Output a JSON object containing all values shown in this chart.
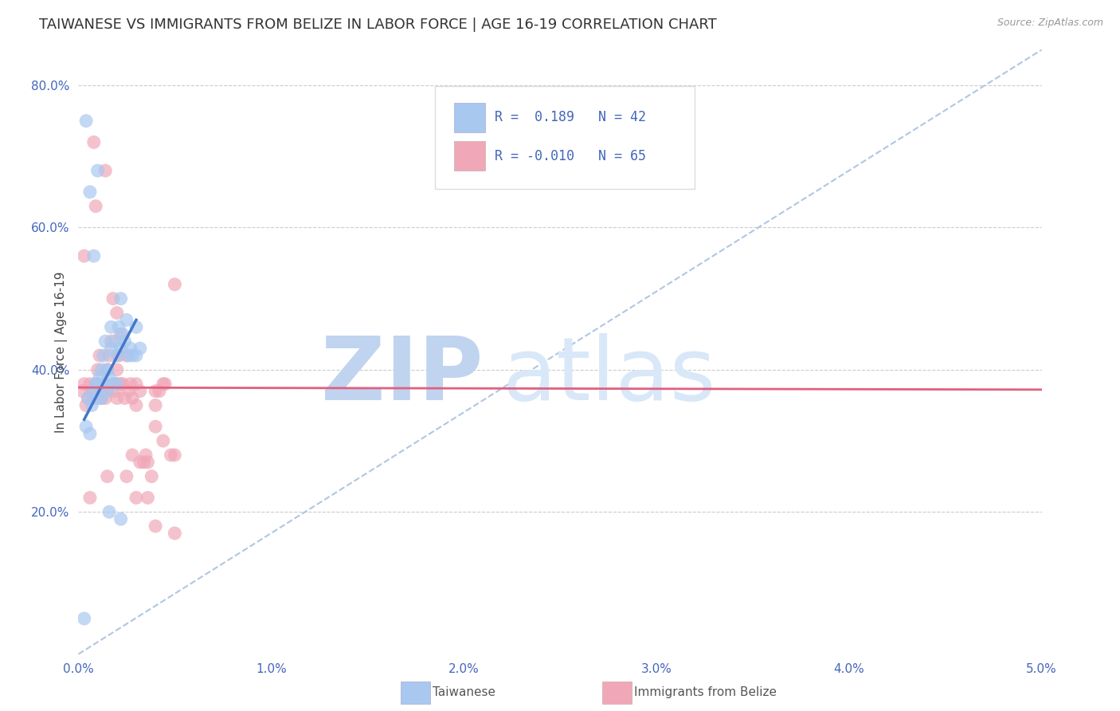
{
  "title": "TAIWANESE VS IMMIGRANTS FROM BELIZE IN LABOR FORCE | AGE 16-19 CORRELATION CHART",
  "source": "Source: ZipAtlas.com",
  "ylabel": "In Labor Force | Age 16-19",
  "xlim": [
    0.0,
    0.05
  ],
  "ylim": [
    0.0,
    0.85
  ],
  "xticks": [
    0.0,
    0.01,
    0.02,
    0.03,
    0.04,
    0.05
  ],
  "xticklabels": [
    "0.0%",
    "1.0%",
    "2.0%",
    "3.0%",
    "4.0%",
    "5.0%"
  ],
  "yticks": [
    0.0,
    0.2,
    0.4,
    0.6,
    0.8
  ],
  "yticklabels": [
    "",
    "20.0%",
    "40.0%",
    "60.0%",
    "80.0%"
  ],
  "background_color": "#ffffff",
  "grid_color": "#cccccc",
  "blue_color": "#a8c8f0",
  "pink_color": "#f0a8b8",
  "blue_line_color": "#4477cc",
  "pink_line_color": "#e06080",
  "dashed_line_color": "#a8c0e0",
  "watermark_zip_color": "#c0d4f0",
  "watermark_atlas_color": "#d8e8f8",
  "legend_R_blue": "0.189",
  "legend_N_blue": "42",
  "legend_R_pink": "-0.010",
  "legend_N_pink": "65",
  "legend_label_blue": "Taiwanese",
  "legend_label_pink": "Immigrants from Belize",
  "title_fontsize": 13,
  "axis_label_fontsize": 11,
  "tick_fontsize": 11,
  "tick_color": "#4466bb",
  "title_color": "#333333",
  "source_color": "#999999",
  "ylabel_color": "#444444",
  "taiwanese_x": [
    0.0003,
    0.0004,
    0.0005,
    0.0006,
    0.0007,
    0.0008,
    0.0009,
    0.001,
    0.001,
    0.0011,
    0.0012,
    0.0012,
    0.0013,
    0.0013,
    0.0014,
    0.0015,
    0.0015,
    0.0016,
    0.0017,
    0.0017,
    0.0018,
    0.0019,
    0.002,
    0.002,
    0.0021,
    0.0022,
    0.0022,
    0.0023,
    0.0024,
    0.0025,
    0.0026,
    0.0027,
    0.0028,
    0.003,
    0.003,
    0.0032,
    0.0004,
    0.0006,
    0.0008,
    0.001,
    0.0016,
    0.0022
  ],
  "taiwanese_y": [
    0.05,
    0.32,
    0.36,
    0.31,
    0.35,
    0.37,
    0.38,
    0.36,
    0.38,
    0.39,
    0.4,
    0.36,
    0.42,
    0.38,
    0.44,
    0.37,
    0.4,
    0.39,
    0.43,
    0.46,
    0.38,
    0.44,
    0.38,
    0.42,
    0.46,
    0.43,
    0.5,
    0.45,
    0.44,
    0.47,
    0.42,
    0.43,
    0.42,
    0.42,
    0.46,
    0.43,
    0.75,
    0.65,
    0.56,
    0.68,
    0.2,
    0.19
  ],
  "belize_x": [
    0.0002,
    0.0003,
    0.0004,
    0.0005,
    0.0006,
    0.0007,
    0.0008,
    0.0009,
    0.001,
    0.001,
    0.0011,
    0.0012,
    0.0013,
    0.0014,
    0.0015,
    0.0015,
    0.0016,
    0.0017,
    0.0018,
    0.0019,
    0.002,
    0.002,
    0.002,
    0.0021,
    0.0022,
    0.0023,
    0.0024,
    0.0025,
    0.0026,
    0.0027,
    0.0028,
    0.003,
    0.003,
    0.0032,
    0.0034,
    0.0035,
    0.0036,
    0.0038,
    0.004,
    0.004,
    0.0042,
    0.0044,
    0.0045,
    0.005,
    0.005,
    0.0003,
    0.0006,
    0.0009,
    0.0012,
    0.0015,
    0.0018,
    0.0022,
    0.0025,
    0.0028,
    0.0032,
    0.0036,
    0.004,
    0.0044,
    0.005,
    0.0048,
    0.0008,
    0.0014,
    0.002,
    0.003,
    0.004
  ],
  "belize_y": [
    0.37,
    0.38,
    0.35,
    0.36,
    0.38,
    0.37,
    0.36,
    0.38,
    0.4,
    0.38,
    0.42,
    0.37,
    0.38,
    0.36,
    0.4,
    0.37,
    0.42,
    0.44,
    0.38,
    0.37,
    0.38,
    0.4,
    0.36,
    0.42,
    0.38,
    0.38,
    0.36,
    0.42,
    0.37,
    0.38,
    0.36,
    0.38,
    0.35,
    0.37,
    0.27,
    0.28,
    0.27,
    0.25,
    0.37,
    0.35,
    0.37,
    0.38,
    0.38,
    0.52,
    0.28,
    0.56,
    0.22,
    0.63,
    0.36,
    0.25,
    0.5,
    0.45,
    0.25,
    0.28,
    0.27,
    0.22,
    0.32,
    0.3,
    0.17,
    0.28,
    0.72,
    0.68,
    0.48,
    0.22,
    0.18
  ],
  "blue_trend_x": [
    0.0003,
    0.003
  ],
  "blue_trend_y": [
    0.33,
    0.47
  ],
  "pink_trend_x": [
    0.0,
    0.05
  ],
  "pink_trend_y": [
    0.375,
    0.372
  ]
}
